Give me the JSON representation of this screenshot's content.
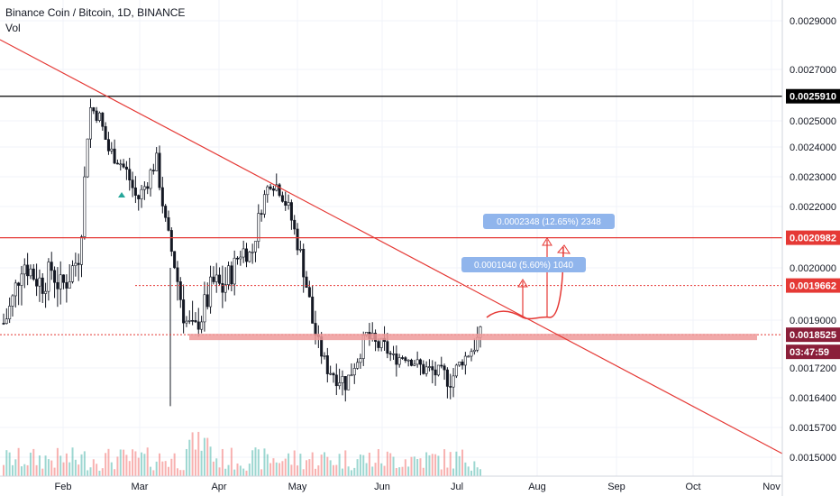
{
  "header": {
    "symbol_title": "Binance Coin / Bitcoin, 1D, BINANCE",
    "indicator": "Vol"
  },
  "colors": {
    "candle": "#131722",
    "trendline": "#e53935",
    "level_red": "#e53935",
    "level_black": "#000000",
    "measure_box": "#90b5ec",
    "volume": "#26a69a",
    "volume_down": "#ef5350"
  },
  "price_axis": {
    "labels": [
      "0.0029000",
      "0.0027000",
      "0.0025000",
      "0.0024000",
      "0.0023000",
      "0.0022000",
      "0.0020000",
      "0.0019000",
      "0.0017200",
      "0.0016400",
      "0.0015700",
      "0.0015000"
    ]
  },
  "time_axis": {
    "labels": [
      "Feb",
      "Mar",
      "Apr",
      "May",
      "Jun",
      "Jul",
      "Aug",
      "Sep",
      "Oct",
      "Nov"
    ]
  },
  "price_tags": {
    "resistance_high": "0.0025910",
    "resistance_mid": "0.0020982",
    "target_level": "0.0019662",
    "last_price": "0.0018525",
    "countdown": "03:47:59"
  },
  "measurements": {
    "small": "0.0001040 (5.60%) 1040",
    "large": "0.0002348 (12.65%) 2348"
  },
  "chart_data": {
    "type": "candlestick",
    "title": "Binance Coin / Bitcoin, 1D, BINANCE",
    "xlabel": "",
    "ylabel": "",
    "x_ticks": [
      "Feb",
      "Mar",
      "Apr",
      "May",
      "Jun",
      "Jul",
      "Aug",
      "Sep",
      "Oct",
      "Nov"
    ],
    "ylim": [
      0.00148,
      0.003
    ],
    "y_ticks": [
      0.0029,
      0.0027,
      0.0025,
      0.0024,
      0.0023,
      0.0022,
      0.002,
      0.0019,
      0.00172,
      0.00164,
      0.00157,
      0.0015
    ],
    "horizontal_levels": [
      0.002591,
      0.0020982,
      0.0019662,
      0.0018525
    ],
    "close_path": [
      0.00189,
      0.00194,
      0.00202,
      0.00199,
      0.00197,
      0.002,
      0.00196,
      0.00199,
      0.00204,
      0.00255,
      0.00252,
      0.00239,
      0.00236,
      0.00231,
      0.00222,
      0.00228,
      0.00236,
      0.00214,
      0.002,
      0.0019,
      0.00187,
      0.00192,
      0.00197,
      0.00196,
      0.002,
      0.00206,
      0.00204,
      0.0022,
      0.00229,
      0.00226,
      0.00218,
      0.00206,
      0.00194,
      0.00182,
      0.00172,
      0.0017,
      0.00168,
      0.00175,
      0.00185,
      0.00182,
      0.00181,
      0.00176,
      0.00178,
      0.00175,
      0.00172,
      0.00171,
      0.0017,
      0.00169,
      0.00175,
      0.0018,
      0.00185
    ],
    "grid": true,
    "legend": "none"
  }
}
